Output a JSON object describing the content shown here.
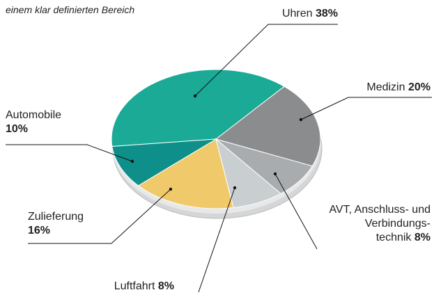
{
  "chart_data": {
    "type": "pie",
    "title": "einem klar definierten Bereich",
    "categories": [
      "Uhren",
      "Medizin",
      "AVT, Anschluss- und Verbindungs- technik",
      "Luftfahrt",
      "Zulieferung",
      "Automobile"
    ],
    "values": [
      38,
      20,
      8,
      8,
      16,
      10
    ],
    "value_labels": [
      "38%",
      "20%",
      "8%",
      "8%",
      "16%",
      "10%"
    ],
    "colors": [
      "#1aaa96",
      "#8a8c8e",
      "#a9acae",
      "#c9ced0",
      "#f0c96a",
      "#0e8f8a"
    ]
  }
}
